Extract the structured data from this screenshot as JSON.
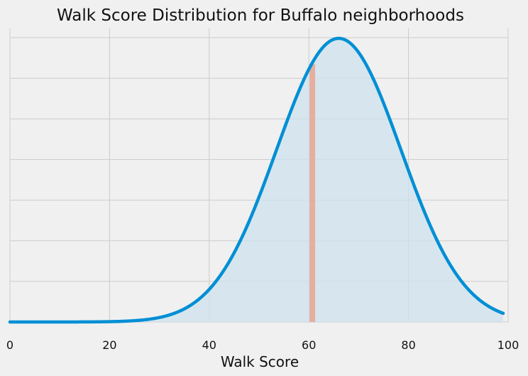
{
  "chart_data": {
    "type": "area",
    "title": "Walk Score Distribution for Buffalo neighborhoods",
    "xlabel": "Walk Score",
    "ylabel": "",
    "xlim": [
      0,
      100
    ],
    "x_ticks": [
      0,
      20,
      40,
      60,
      80,
      100
    ],
    "y_gridlines": 8,
    "y_tick_labels_visible": false,
    "grid": true,
    "distribution": {
      "kind": "normal",
      "mean": 66,
      "std": 12.5,
      "x_range": [
        0,
        99
      ]
    },
    "marker_line": {
      "x": 60.7,
      "color": "#e5ae9f"
    },
    "colors": {
      "curve": "#008fd5",
      "fill": "#cfe3ee",
      "grid": "#cbcbcb",
      "background": "#f0f0f0"
    }
  }
}
